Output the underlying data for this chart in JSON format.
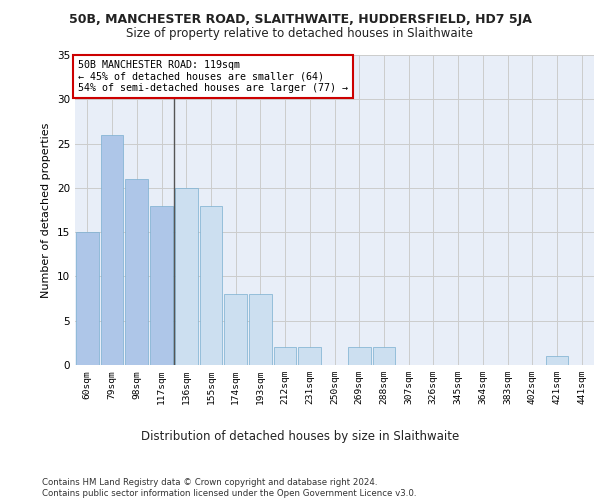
{
  "title": "50B, MANCHESTER ROAD, SLAITHWAITE, HUDDERSFIELD, HD7 5JA",
  "subtitle": "Size of property relative to detached houses in Slaithwaite",
  "xlabel": "Distribution of detached houses by size in Slaithwaite",
  "ylabel": "Number of detached properties",
  "bins": [
    "60sqm",
    "79sqm",
    "98sqm",
    "117sqm",
    "136sqm",
    "155sqm",
    "174sqm",
    "193sqm",
    "212sqm",
    "231sqm",
    "250sqm",
    "269sqm",
    "288sqm",
    "307sqm",
    "326sqm",
    "345sqm",
    "364sqm",
    "383sqm",
    "402sqm",
    "421sqm",
    "441sqm"
  ],
  "values": [
    15,
    26,
    21,
    18,
    20,
    18,
    8,
    8,
    2,
    2,
    0,
    2,
    2,
    0,
    0,
    0,
    0,
    0,
    0,
    1,
    0
  ],
  "bar_color_left": "#aec6e8",
  "bar_color_right": "#ccdff0",
  "property_bin_index": 3,
  "annotation_text": "50B MANCHESTER ROAD: 119sqm\n← 45% of detached houses are smaller (64)\n54% of semi-detached houses are larger (77) →",
  "annotation_box_color": "#ffffff",
  "annotation_box_edge": "#cc0000",
  "vline_color": "#555555",
  "ylim": [
    0,
    35
  ],
  "yticks": [
    0,
    5,
    10,
    15,
    20,
    25,
    30,
    35
  ],
  "grid_color": "#cccccc",
  "background_color": "#e8eef8",
  "footer": "Contains HM Land Registry data © Crown copyright and database right 2024.\nContains public sector information licensed under the Open Government Licence v3.0."
}
